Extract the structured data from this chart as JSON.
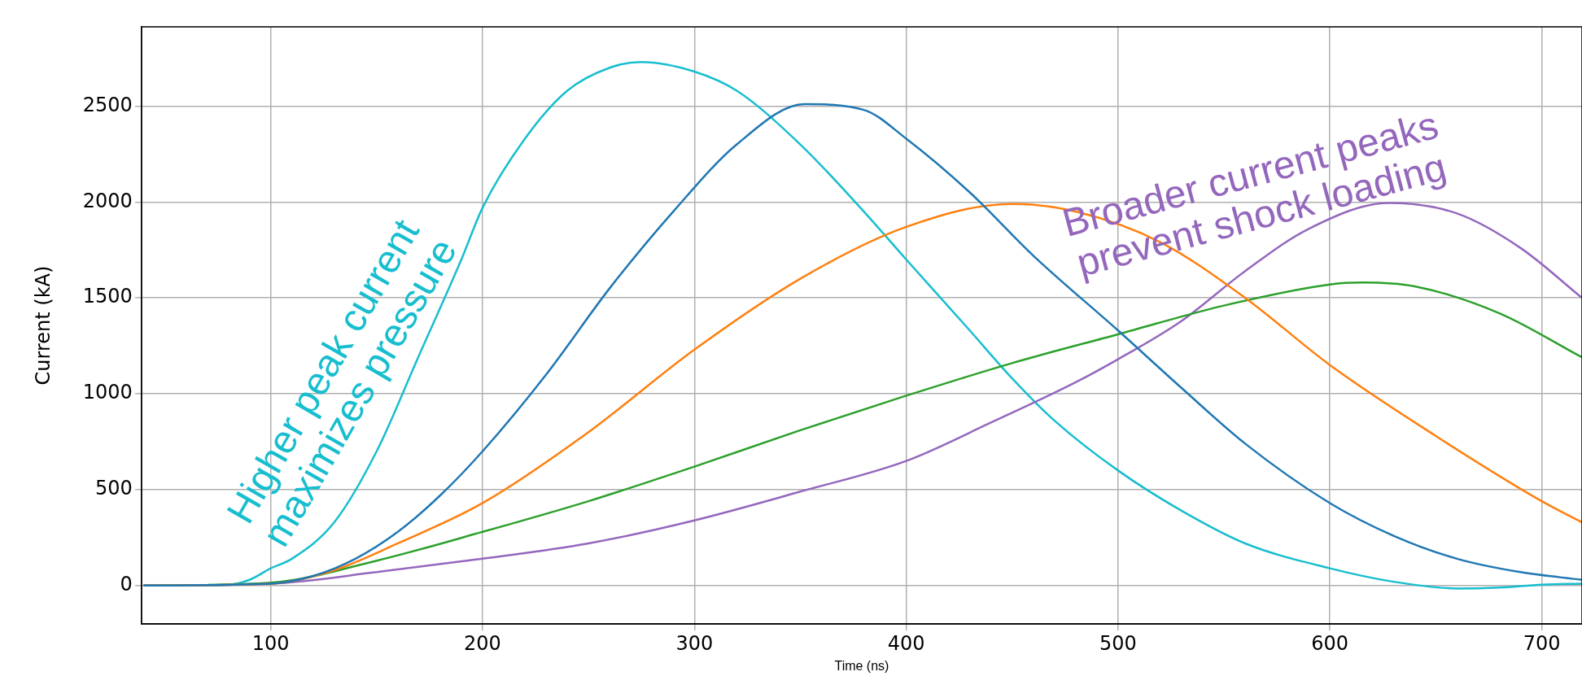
{
  "chart_data": {
    "type": "line",
    "xlabel": "Time (ns)",
    "ylabel": "Current (kA)",
    "xlim": [
      39,
      719
    ],
    "xticks": [
      100,
      200,
      300,
      400,
      500,
      600,
      700
    ],
    "ylim": [
      -200,
      2913
    ],
    "yticks": [
      0,
      500,
      1000,
      1500,
      2000,
      2500
    ],
    "grid": true,
    "legend": false,
    "marker": "none",
    "line_style": "solid",
    "annotations": [
      "Higher peak current\nmaximizes pressure",
      "Broader current peaks\nprevent shock loading"
    ],
    "series": [
      {
        "color": "#1f77b4",
        "x": [
          40,
          100,
          120,
          140,
          160,
          180,
          200,
          230,
          260,
          290,
          320,
          352,
          380,
          400,
          430,
          460,
          500,
          530,
          560,
          600,
          630,
          660,
          690,
          719
        ],
        "values": [
          0,
          10,
          50,
          140,
          280,
          470,
          700,
          1100,
          1550,
          1950,
          2300,
          2510,
          2480,
          2330,
          2050,
          1720,
          1330,
          1030,
          740,
          430,
          260,
          140,
          70,
          30
        ]
      },
      {
        "color": "#ff7f0e",
        "x": [
          40,
          100,
          130,
          160,
          200,
          250,
          300,
          350,
          400,
          450,
          480,
          520,
          560,
          600,
          650,
          700,
          719
        ],
        "values": [
          0,
          10,
          80,
          220,
          430,
          800,
          1230,
          1600,
          1870,
          1990,
          1950,
          1790,
          1500,
          1150,
          780,
          440,
          330
        ]
      },
      {
        "color": "#2ca02c",
        "x": [
          40,
          100,
          150,
          200,
          250,
          300,
          350,
          400,
          450,
          500,
          550,
          600,
          615,
          640,
          680,
          719
        ],
        "values": [
          0,
          15,
          130,
          280,
          440,
          620,
          810,
          990,
          1160,
          1310,
          1460,
          1570,
          1580,
          1560,
          1420,
          1190
        ]
      },
      {
        "color": "#9467bd",
        "x": [
          40,
          100,
          150,
          200,
          250,
          300,
          350,
          400,
          440,
          480,
          500,
          530,
          560,
          590,
          628,
          660,
          690,
          719
        ],
        "values": [
          0,
          10,
          70,
          140,
          220,
          340,
          490,
          650,
          850,
          1060,
          1180,
          1380,
          1640,
          1860,
          1995,
          1940,
          1760,
          1500
        ]
      },
      {
        "color": "#17becf",
        "x": [
          40,
          80,
          90,
          100,
          110,
          130,
          150,
          170,
          190,
          200,
          220,
          240,
          260,
          275,
          300,
          320,
          350,
          380,
          400,
          430,
          450,
          470,
          500,
          530,
          560,
          600,
          630,
          660,
          680,
          700,
          719
        ],
        "values": [
          0,
          5,
          30,
          90,
          140,
          330,
          700,
          1200,
          1700,
          1970,
          2330,
          2580,
          2700,
          2730,
          2680,
          2580,
          2300,
          1950,
          1700,
          1330,
          1080,
          860,
          600,
          390,
          220,
          90,
          20,
          -15,
          -10,
          5,
          10
        ]
      }
    ]
  }
}
